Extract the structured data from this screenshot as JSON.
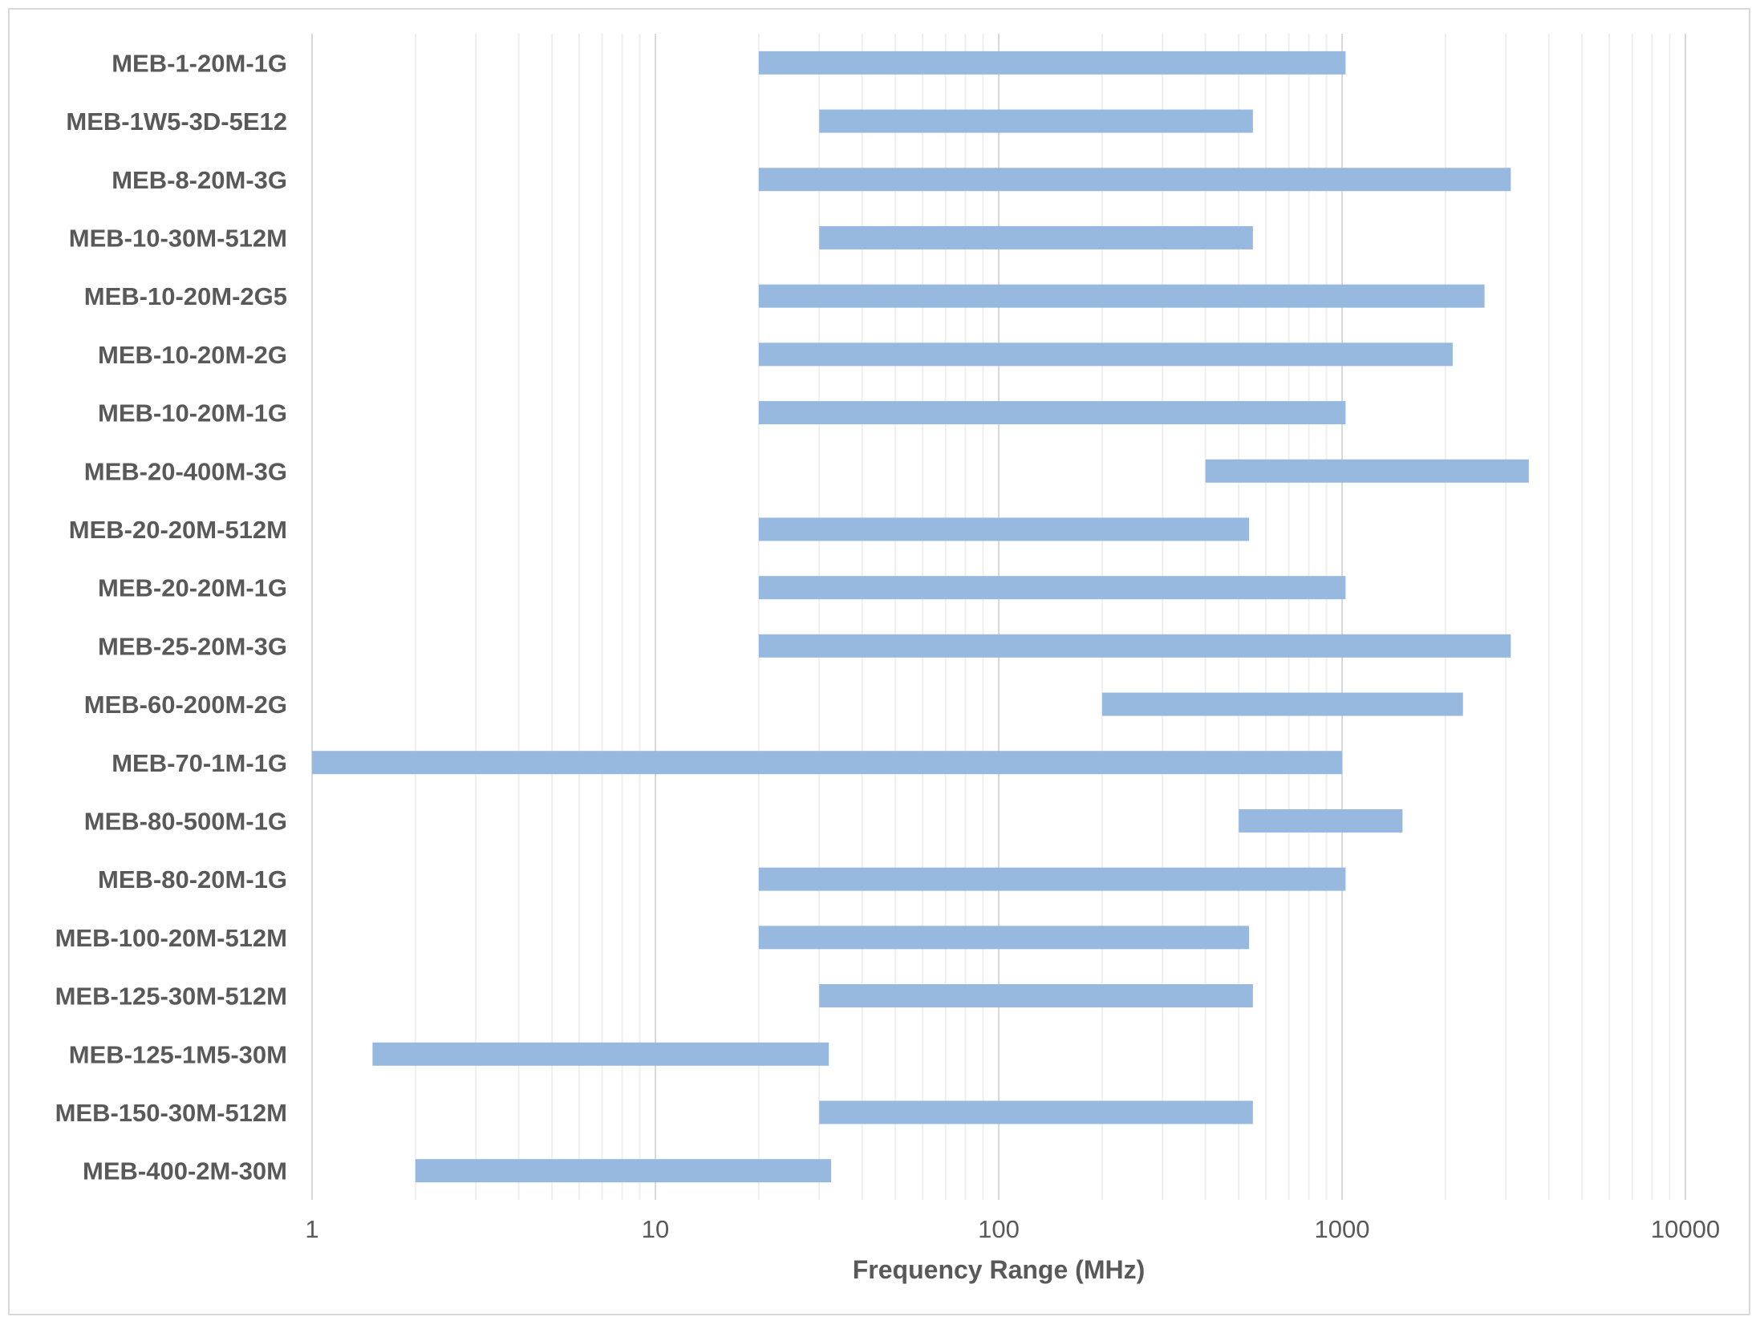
{
  "chart_data": {
    "type": "bar",
    "orientation": "horizontal-floating",
    "title": "",
    "xlabel": "Frequency Range (MHz)",
    "ylabel": "",
    "xscale": "log",
    "xlim": [
      1,
      10000
    ],
    "x_ticks": [
      "1",
      "10",
      "100",
      "1000",
      "10000"
    ],
    "grid": true,
    "legend": "none",
    "colors": {
      "bar": "#97b9e0",
      "major_grid": "#d9d9d9",
      "minor_grid": "#efefef",
      "text": "#595959"
    },
    "categories": [
      "MEB-1-20M-1G",
      "MEB-1W5-3D-5E12",
      "MEB-8-20M-3G",
      "MEB-10-30M-512M",
      "MEB-10-20M-2G5",
      "MEB-10-20M-2G",
      "MEB-10-20M-1G",
      "MEB-20-400M-3G",
      "MEB-20-20M-512M",
      "MEB-20-20M-1G",
      "MEB-25-20M-3G",
      "MEB-60-200M-2G",
      "MEB-70-1M-1G",
      "MEB-80-500M-1G",
      "MEB-80-20M-1G",
      "MEB-100-20M-512M",
      "MEB-125-30M-512M",
      "MEB-125-1M5-30M",
      "MEB-150-30M-512M",
      "MEB-400-2M-30M"
    ],
    "series": [
      {
        "name": "Frequency Range",
        "ranges": [
          [
            20,
            1024
          ],
          [
            30,
            550
          ],
          [
            20,
            3100
          ],
          [
            30,
            550
          ],
          [
            20,
            2600
          ],
          [
            20,
            2100
          ],
          [
            20,
            1024
          ],
          [
            400,
            3500
          ],
          [
            20,
            536
          ],
          [
            20,
            1024
          ],
          [
            20,
            3100
          ],
          [
            200,
            2250
          ],
          [
            1,
            1000
          ],
          [
            500,
            1500
          ],
          [
            20,
            1024
          ],
          [
            20,
            536
          ],
          [
            30,
            550
          ],
          [
            1.5,
            32
          ],
          [
            30,
            550
          ],
          [
            2,
            32.5
          ]
        ]
      }
    ]
  }
}
